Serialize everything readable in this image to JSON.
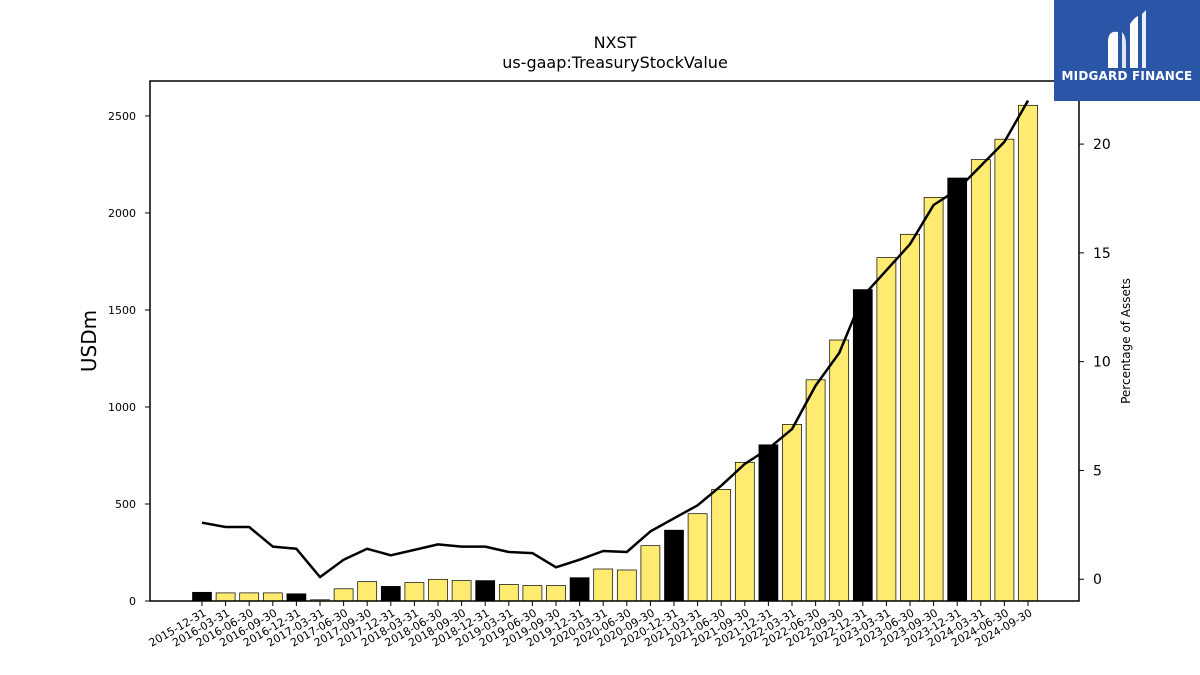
{
  "brand": {
    "name": "MIDGARD FINANCE",
    "bg_color": "#2b56a8"
  },
  "chart_data": {
    "type": "bar",
    "title": "NXST",
    "subtitle": "us-gaap:TreasuryStockValue",
    "ylabel": "USDm",
    "y2label": "Percentage of Assets",
    "ylim": [
      0,
      2680
    ],
    "y2lim": [
      -1,
      22.9
    ],
    "yticks": [
      0,
      500,
      1000,
      1500,
      2000,
      2500
    ],
    "y2ticks": [
      0,
      5,
      10,
      15,
      20
    ],
    "colors": {
      "quarter_bar": "#ffeb70",
      "year_end_bar": "#000000",
      "line": "#000000"
    },
    "categories": [
      "2015-12-31",
      "2016-03-31",
      "2016-06-30",
      "2016-09-30",
      "2016-12-31",
      "2017-03-31",
      "2017-06-30",
      "2017-09-30",
      "2017-12-31",
      "2018-03-31",
      "2018-06-30",
      "2018-09-30",
      "2018-12-31",
      "2019-03-31",
      "2019-06-30",
      "2019-09-30",
      "2019-12-31",
      "2020-03-31",
      "2020-06-30",
      "2020-09-30",
      "2020-12-31",
      "2021-03-31",
      "2021-06-30",
      "2021-09-30",
      "2021-12-31",
      "2022-03-31",
      "2022-06-30",
      "2022-09-30",
      "2022-12-31",
      "2023-03-31",
      "2023-06-30",
      "2023-09-30",
      "2023-12-31",
      "2024-03-31",
      "2024-06-30",
      "2024-09-30"
    ],
    "series": [
      {
        "kind": "bar",
        "axis": "left",
        "values": [
          45,
          42,
          42,
          42,
          37,
          6,
          63,
          100,
          75,
          95,
          112,
          105,
          105,
          85,
          80,
          80,
          120,
          165,
          160,
          285,
          365,
          450,
          575,
          715,
          805,
          910,
          1140,
          1345,
          1605,
          1770,
          1890,
          2080,
          2180,
          2275,
          2380,
          2555
        ],
        "year_end": [
          true,
          false,
          false,
          false,
          true,
          false,
          false,
          false,
          true,
          false,
          false,
          false,
          true,
          false,
          false,
          false,
          true,
          false,
          false,
          false,
          true,
          false,
          false,
          false,
          true,
          false,
          false,
          false,
          true,
          false,
          false,
          false,
          true,
          false,
          false,
          false
        ]
      },
      {
        "kind": "line",
        "axis": "right",
        "values": [
          2.6,
          2.4,
          2.4,
          1.5,
          1.4,
          0.1,
          0.9,
          1.4,
          1.1,
          1.35,
          1.6,
          1.5,
          1.5,
          1.25,
          1.2,
          0.55,
          0.9,
          1.3,
          1.25,
          2.2,
          2.8,
          3.4,
          4.3,
          5.3,
          6.0,
          6.9,
          8.9,
          10.4,
          13.0,
          14.2,
          15.4,
          17.2,
          17.9,
          19.0,
          20.1,
          22.0
        ]
      }
    ],
    "grid": false,
    "legend": "none"
  }
}
